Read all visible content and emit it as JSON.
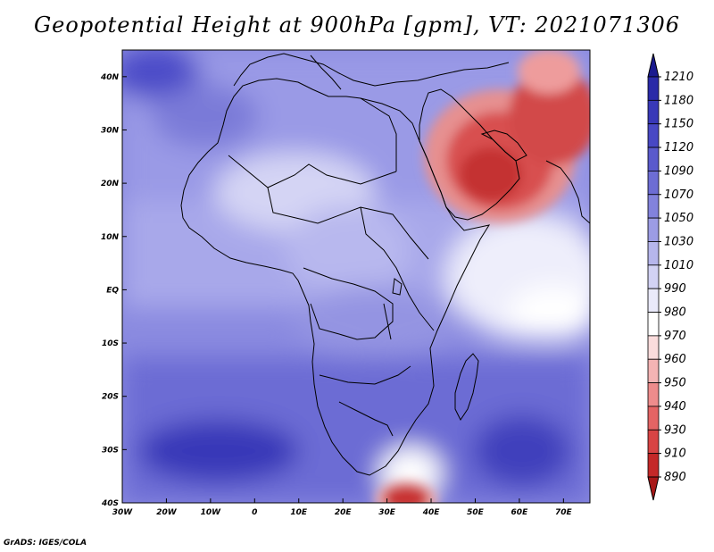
{
  "title": "Geopotential Height at 900hPa [gpm], VT: 2021071306",
  "footer": "GrADS: IGES/COLA",
  "map": {
    "projection": "latlon",
    "lon_range": [
      -30,
      76
    ],
    "lat_range": [
      -40,
      45
    ],
    "lon_ticks": [
      {
        "value": -30,
        "label": "30W"
      },
      {
        "value": -20,
        "label": "20W"
      },
      {
        "value": -10,
        "label": "10W"
      },
      {
        "value": 0,
        "label": "0"
      },
      {
        "value": 10,
        "label": "10E"
      },
      {
        "value": 20,
        "label": "20E"
      },
      {
        "value": 30,
        "label": "30E"
      },
      {
        "value": 40,
        "label": "40E"
      },
      {
        "value": 50,
        "label": "50E"
      },
      {
        "value": 60,
        "label": "60E"
      },
      {
        "value": 70,
        "label": "70E"
      }
    ],
    "lat_ticks": [
      {
        "value": 40,
        "label": "40N"
      },
      {
        "value": 30,
        "label": "30N"
      },
      {
        "value": 20,
        "label": "20N"
      },
      {
        "value": 10,
        "label": "10N"
      },
      {
        "value": 0,
        "label": "EQ"
      },
      {
        "value": -10,
        "label": "10S"
      },
      {
        "value": -20,
        "label": "20S"
      },
      {
        "value": -30,
        "label": "30S"
      },
      {
        "value": -40,
        "label": "40S"
      }
    ]
  },
  "colorbar": {
    "levels": [
      "1210",
      "1180",
      "1150",
      "1120",
      "1090",
      "1070",
      "1050",
      "1030",
      "1010",
      "990",
      "980",
      "970",
      "960",
      "950",
      "940",
      "930",
      "910",
      "890"
    ],
    "colors": [
      "#1a1a8f",
      "#2a2aa8",
      "#3838b8",
      "#4848c4",
      "#5a5acc",
      "#6d6dd4",
      "#8282dc",
      "#9c9ce4",
      "#b6b6ec",
      "#d2d2f4",
      "#eaeafa",
      "#ffffff",
      "#fadcdc",
      "#f4b4b4",
      "#ee8c8c",
      "#e46464",
      "#d84444",
      "#c42828",
      "#a81818"
    ]
  }
}
